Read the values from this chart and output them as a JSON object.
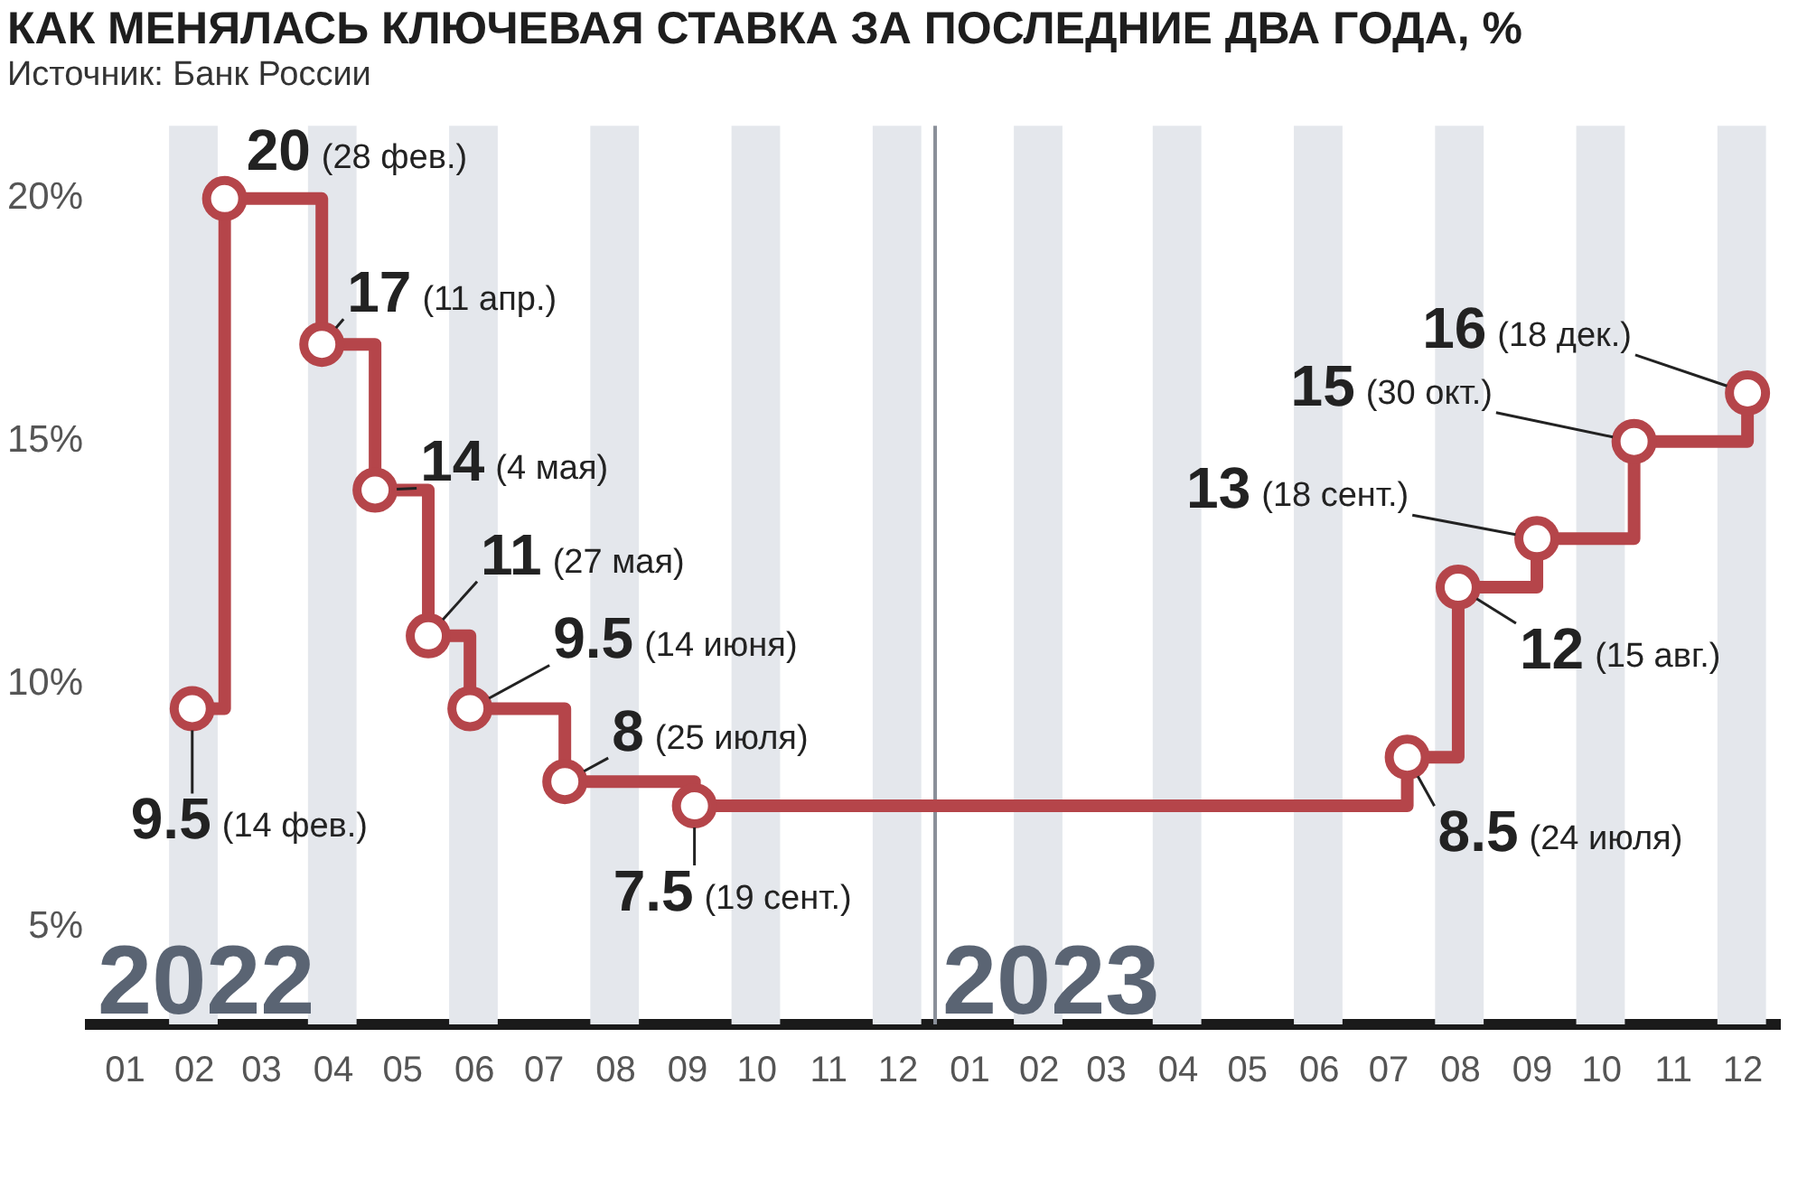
{
  "chart_data": {
    "type": "step",
    "title": "КАК МЕНЯЛАСЬ КЛЮЧЕВАЯ СТАВКА ЗА ПОСЛЕДНИЕ ДВА ГОДА, %",
    "x": [
      "2022-02-14",
      "2022-02-28",
      "2022-04-11",
      "2022-05-04",
      "2022-05-27",
      "2022-06-14",
      "2022-07-25",
      "2022-09-19",
      "2023-07-24",
      "2023-08-15",
      "2023-09-18",
      "2023-10-30",
      "2023-12-18"
    ],
    "series": [
      {
        "color": "#b5454a",
        "values": [
          9.5,
          20,
          17,
          14,
          11,
          9.5,
          8,
          7.5,
          8.5,
          12,
          13,
          15,
          16
        ]
      }
    ],
    "marker": "circle",
    "value_labels": [
      "9.5 (14 фев.)",
      "20 (28 фев.)",
      "17 (11 апр.)",
      "14 (4 мая)",
      "11 (27 мая)",
      "9.5 (14 июня)",
      "8 (25 июля)",
      "7.5 (19 сент.)",
      "8.5 (24 июля)",
      "12 (15 авг.)",
      "13 (18 сент.)",
      "15 (30 окт.)",
      "16 (18 дек.)"
    ],
    "xlim": [
      "2022-01-01",
      "2024-01-01"
    ],
    "xticks": [
      {
        "value": "2022-01-16",
        "label": "01"
      },
      {
        "value": "2022-02-15",
        "label": "02"
      },
      {
        "value": "2022-03-16",
        "label": "03"
      },
      {
        "value": "2022-04-16",
        "label": "04"
      },
      {
        "value": "2022-05-16",
        "label": "05"
      },
      {
        "value": "2022-06-16",
        "label": "06"
      },
      {
        "value": "2022-07-16",
        "label": "07"
      },
      {
        "value": "2022-08-16",
        "label": "08"
      },
      {
        "value": "2022-09-16",
        "label": "09"
      },
      {
        "value": "2022-10-16",
        "label": "10"
      },
      {
        "value": "2022-11-16",
        "label": "11"
      },
      {
        "value": "2022-12-16",
        "label": "12"
      },
      {
        "value": "2023-01-16",
        "label": "01"
      },
      {
        "value": "2023-02-15",
        "label": "02"
      },
      {
        "value": "2023-03-16",
        "label": "03"
      },
      {
        "value": "2023-04-16",
        "label": "04"
      },
      {
        "value": "2023-05-16",
        "label": "05"
      },
      {
        "value": "2023-06-16",
        "label": "06"
      },
      {
        "value": "2023-07-16",
        "label": "07"
      },
      {
        "value": "2023-08-16",
        "label": "08"
      },
      {
        "value": "2023-09-16",
        "label": "09"
      },
      {
        "value": "2023-10-16",
        "label": "10"
      },
      {
        "value": "2023-11-16",
        "label": "11"
      },
      {
        "value": "2023-12-16",
        "label": "12"
      }
    ],
    "ylim": [
      3,
      21.5
    ],
    "yticks": [
      {
        "value": 5,
        "label": "5%"
      },
      {
        "value": 10,
        "label": "10%"
      },
      {
        "value": 15,
        "label": "15%"
      },
      {
        "value": 20,
        "label": "20%"
      }
    ],
    "grid": false,
    "legend": false,
    "ref_lines": [
      {
        "axis": "x",
        "value": "2023-01-01",
        "color": "#8a8f99"
      }
    ],
    "bands": [
      {
        "axis": "x",
        "from": "2022-02-04",
        "to": "2022-02-25",
        "color": "#e4e7ec"
      },
      {
        "axis": "x",
        "from": "2022-04-05",
        "to": "2022-04-26",
        "color": "#e4e7ec"
      },
      {
        "axis": "x",
        "from": "2022-06-05",
        "to": "2022-06-26",
        "color": "#e4e7ec"
      },
      {
        "axis": "x",
        "from": "2022-08-05",
        "to": "2022-08-26",
        "color": "#e4e7ec"
      },
      {
        "axis": "x",
        "from": "2022-10-05",
        "to": "2022-10-26",
        "color": "#e4e7ec"
      },
      {
        "axis": "x",
        "from": "2022-12-05",
        "to": "2022-12-26",
        "color": "#e4e7ec"
      },
      {
        "axis": "x",
        "from": "2023-02-04",
        "to": "2023-02-25",
        "color": "#e4e7ec"
      },
      {
        "axis": "x",
        "from": "2023-04-05",
        "to": "2023-04-26",
        "color": "#e4e7ec"
      },
      {
        "axis": "x",
        "from": "2023-06-05",
        "to": "2023-06-26",
        "color": "#e4e7ec"
      },
      {
        "axis": "x",
        "from": "2023-08-05",
        "to": "2023-08-26",
        "color": "#e4e7ec"
      },
      {
        "axis": "x",
        "from": "2023-10-05",
        "to": "2023-10-26",
        "color": "#e4e7ec"
      },
      {
        "axis": "x",
        "from": "2023-12-05",
        "to": "2023-12-26",
        "color": "#e4e7ec"
      }
    ],
    "annotations": [
      "Источник: Банк России",
      "2022",
      "2023"
    ]
  }
}
